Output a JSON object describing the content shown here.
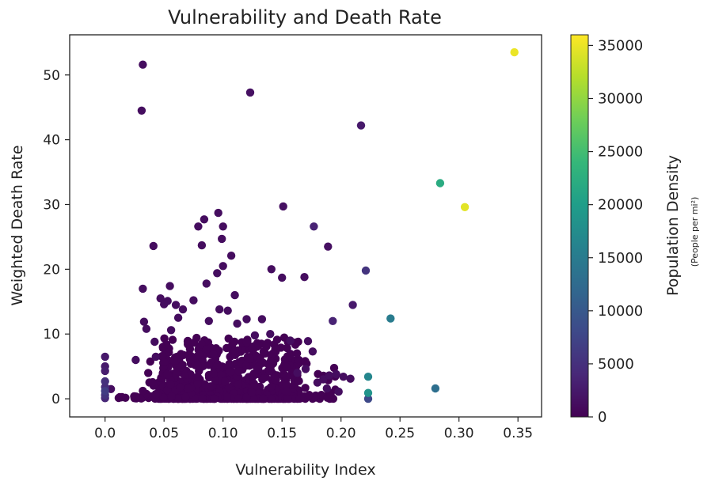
{
  "chart_data": {
    "type": "scatter",
    "title": "Vulnerability and Death Rate",
    "xlabel": "Vulnerability Index",
    "ylabel": "Weighted Death Rate",
    "xlim": [
      -0.03,
      0.37
    ],
    "ylim": [
      -2.8,
      56.2
    ],
    "xticks": [
      0.0,
      0.05,
      0.1,
      0.15,
      0.2,
      0.25,
      0.3,
      0.35
    ],
    "xtick_labels": [
      "0.0",
      "0.05",
      "0.10",
      "0.15",
      "0.20",
      "0.25",
      "0.30",
      "0.35"
    ],
    "yticks": [
      0,
      10,
      20,
      30,
      40,
      50
    ],
    "ytick_labels": [
      "0",
      "10",
      "20",
      "30",
      "40",
      "50"
    ],
    "grid": false,
    "colorbar": {
      "label": "Population Density",
      "unit": "(People per mi²)",
      "range": [
        0,
        36000
      ],
      "ticks": [
        0,
        5000,
        10000,
        15000,
        20000,
        25000,
        30000,
        35000
      ],
      "tick_labels": [
        "0",
        "5000",
        "10000",
        "15000",
        "20000",
        "25000",
        "30000",
        "35000"
      ],
      "colormap": "viridis",
      "colors": [
        "#440154",
        "#482878",
        "#3e4989",
        "#31688e",
        "#26828e",
        "#1f9e89",
        "#35b779",
        "#6ece58",
        "#b5de2b",
        "#fde725"
      ]
    },
    "points": [
      [
        0.347,
        53.5,
        35000
      ],
      [
        0.305,
        29.6,
        34500
      ],
      [
        0.284,
        33.3,
        22000
      ],
      [
        0.242,
        12.4,
        15000
      ],
      [
        0.28,
        1.6,
        13000
      ],
      [
        0.223,
        3.4,
        16500
      ],
      [
        0.223,
        0.9,
        18500
      ],
      [
        0.223,
        0.0,
        8000
      ],
      [
        0.221,
        19.8,
        5500
      ],
      [
        0.032,
        51.6,
        1200
      ],
      [
        0.031,
        44.5,
        1200
      ],
      [
        0.123,
        47.3,
        1500
      ],
      [
        0.217,
        42.2,
        2500
      ],
      [
        0.151,
        29.7,
        1500
      ],
      [
        0.177,
        26.6,
        3500
      ],
      [
        0.189,
        23.5,
        1500
      ],
      [
        0.21,
        14.5,
        2500
      ],
      [
        0.193,
        12.0,
        3500
      ],
      [
        0.096,
        28.7,
        1200
      ],
      [
        0.084,
        27.7,
        1200
      ],
      [
        0.1,
        26.6,
        1200
      ],
      [
        0.079,
        26.6,
        1200
      ],
      [
        0.099,
        24.7,
        1200
      ],
      [
        0.041,
        23.6,
        1200
      ],
      [
        0.082,
        23.7,
        1200
      ],
      [
        0.107,
        22.1,
        1200
      ],
      [
        0.1,
        20.5,
        1200
      ],
      [
        0.095,
        19.4,
        1200
      ],
      [
        0.141,
        20.0,
        1200
      ],
      [
        0.15,
        18.7,
        1200
      ],
      [
        0.169,
        18.8,
        1200
      ],
      [
        0.086,
        17.8,
        1200
      ],
      [
        0.032,
        17.0,
        1200
      ],
      [
        0.055,
        17.4,
        1200
      ],
      [
        0.11,
        16.0,
        1200
      ],
      [
        0.047,
        15.5,
        1200
      ],
      [
        0.053,
        15.1,
        1200
      ],
      [
        0.05,
        14.6,
        1200
      ],
      [
        0.06,
        14.5,
        1200
      ],
      [
        0.075,
        15.2,
        1200
      ],
      [
        0.066,
        13.8,
        1200
      ],
      [
        0.097,
        13.8,
        1200
      ],
      [
        0.104,
        13.6,
        1200
      ],
      [
        0.088,
        12.0,
        1200
      ],
      [
        0.062,
        12.5,
        1200
      ],
      [
        0.12,
        12.3,
        1200
      ],
      [
        0.133,
        12.3,
        1200
      ],
      [
        0.033,
        11.9,
        1200
      ],
      [
        0.112,
        11.6,
        1200
      ],
      [
        0.035,
        10.8,
        1200
      ],
      [
        0.056,
        10.6,
        1200
      ],
      [
        0.127,
        9.8,
        1200
      ],
      [
        0.14,
        10.0,
        1200
      ],
      [
        0.157,
        9.0,
        1200
      ],
      [
        0.172,
        8.9,
        1200
      ],
      [
        0.042,
        8.8,
        1200
      ],
      [
        0.176,
        7.3,
        1200
      ],
      [
        0.043,
        6.5,
        1200
      ],
      [
        0.026,
        6.0,
        1200
      ],
      [
        0.005,
        1.5,
        1200
      ],
      [
        0.0,
        6.5,
        2500
      ],
      [
        0.0,
        5.0,
        2500
      ],
      [
        0.0,
        4.3,
        3000
      ],
      [
        0.0,
        2.7,
        5000
      ],
      [
        0.0,
        1.8,
        4500
      ],
      [
        0.0,
        1.2,
        6500
      ],
      [
        0.0,
        0.6,
        5500
      ],
      [
        0.0,
        0.1,
        4000
      ],
      [
        0.196,
        3.8,
        1200
      ],
      [
        0.202,
        3.4,
        1200
      ],
      [
        0.208,
        3.1,
        1200
      ],
      [
        0.185,
        3.0,
        1200
      ],
      [
        0.19,
        3.6,
        1200
      ],
      [
        0.18,
        2.5,
        1200
      ],
      [
        0.17,
        4.6,
        1200
      ],
      [
        0.163,
        4.0,
        1200
      ],
      [
        0.198,
        1.1,
        1200
      ],
      [
        0.188,
        1.6,
        1200
      ]
    ]
  }
}
